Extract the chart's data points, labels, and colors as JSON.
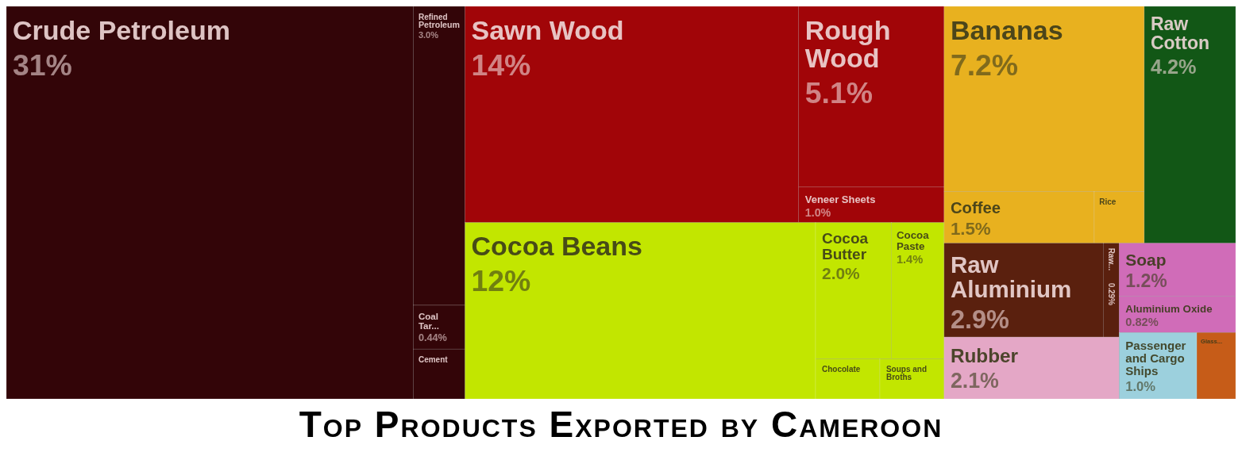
{
  "chart_data": {
    "type": "other",
    "title": "Top Products Exported by Cameroon",
    "categories": [
      "Crude Petroleum",
      "Refined Petroleum",
      "Coal Tar...",
      "Cement",
      "Sawn Wood",
      "Rough Wood",
      "Veneer Sheets",
      "Cocoa Beans",
      "Cocoa Butter",
      "Cocoa Paste",
      "Chocolate",
      "Soups and Broths",
      "Bananas",
      "Coffee",
      "Rice",
      "Raw Cotton",
      "Raw Aluminium",
      "Raw...",
      "Rubber",
      "Soap",
      "Aluminium Oxide",
      "Passenger and Cargo Ships",
      "Glass..."
    ],
    "values": [
      31,
      3.0,
      0.44,
      null,
      14,
      5.1,
      1.0,
      12,
      2.0,
      1.4,
      null,
      null,
      7.2,
      1.5,
      null,
      4.2,
      2.9,
      0.29,
      2.1,
      1.2,
      0.82,
      1.0,
      null
    ],
    "value_labels": [
      "31%",
      "3.0%",
      "0.44%",
      null,
      "14%",
      "5.1%",
      "1.0%",
      "12%",
      "2.0%",
      "1.4%",
      null,
      null,
      "7.2%",
      "1.5%",
      null,
      "4.2%",
      "2.9%",
      "0.29%",
      "2.1%",
      "1.2%",
      "0.82%",
      "1.0%",
      null
    ],
    "colors": [
      "#330508",
      "#330508",
      "#330508",
      "#330508",
      "#a10508",
      "#a10508",
      "#a10508",
      "#c2e600",
      "#c2e600",
      "#c2e600",
      "#c2e600",
      "#c2e600",
      "#e8b11f",
      "#e8b11f",
      "#e8b11f",
      "#125716",
      "#5a200e",
      "#5a200e",
      "#e4a7c6",
      "#d06cb8",
      "#d06cb8",
      "#9cd0dd",
      "#c65c18"
    ]
  }
}
